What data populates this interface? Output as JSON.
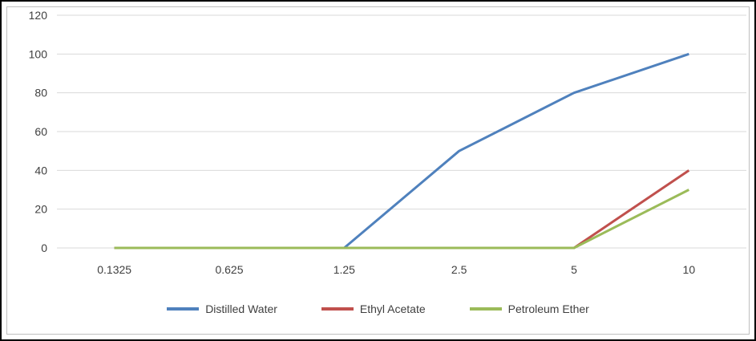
{
  "chart_data": {
    "type": "line",
    "title": "",
    "xlabel": "",
    "ylabel": "",
    "categories": [
      "0.1325",
      "0.625",
      "1.25",
      "2.5",
      "5",
      "10"
    ],
    "series": [
      {
        "name": "Distilled Water",
        "color": "#4F81BD",
        "values": [
          0,
          0,
          0,
          50,
          80,
          100
        ]
      },
      {
        "name": "Ethyl Acetate",
        "color": "#C0504D",
        "values": [
          0,
          0,
          0,
          0,
          0,
          40
        ]
      },
      {
        "name": "Petroleum Ether",
        "color": "#9BBB59",
        "values": [
          0,
          0,
          0,
          0,
          0,
          30
        ]
      }
    ],
    "ylim": [
      0,
      120
    ],
    "ytick_step": 20,
    "grid": true,
    "legend_position": "bottom"
  },
  "colors": {
    "gridline": "#d9d9d9",
    "axis_text": "#3f3f3f",
    "chart_border": "#bfbfbf",
    "frame_border": "#000000",
    "background": "#ffffff"
  }
}
